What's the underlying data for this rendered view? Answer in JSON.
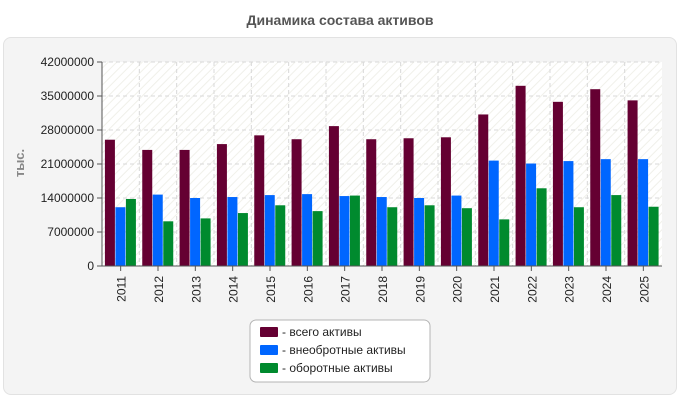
{
  "title": "Динамика состава активов",
  "chart_data": {
    "type": "bar",
    "title": "Динамика состава активов",
    "xlabel": "",
    "ylabel": "тыс.",
    "ylim": [
      0,
      42000000
    ],
    "yticks": [
      0,
      7000000,
      14000000,
      21000000,
      28000000,
      35000000,
      42000000
    ],
    "grid": true,
    "legend_position": "bottom",
    "categories": [
      "2011",
      "2012",
      "2013",
      "2014",
      "2015",
      "2016",
      "2017",
      "2018",
      "2019",
      "2020",
      "2021",
      "2022",
      "2023",
      "2024",
      "2025"
    ],
    "series": [
      {
        "name": "- всего активы",
        "color": "#650032",
        "values": [
          26000000,
          23900000,
          23900000,
          25100000,
          26900000,
          26100000,
          28800000,
          26100000,
          26300000,
          26500000,
          31200000,
          37100000,
          33800000,
          36400000,
          34100000
        ]
      },
      {
        "name": "- внеобротные активы",
        "color": "#0066ff",
        "values": [
          12100000,
          14700000,
          14000000,
          14200000,
          14600000,
          14800000,
          14400000,
          14200000,
          14000000,
          14500000,
          21700000,
          21100000,
          21600000,
          22000000,
          22000000
        ]
      },
      {
        "name": "- оборотные активы",
        "color": "#008a2e",
        "values": [
          13800000,
          9200000,
          9800000,
          10900000,
          12500000,
          11300000,
          14500000,
          12100000,
          12500000,
          11900000,
          9600000,
          16000000,
          12100000,
          14600000,
          12200000
        ]
      }
    ]
  }
}
